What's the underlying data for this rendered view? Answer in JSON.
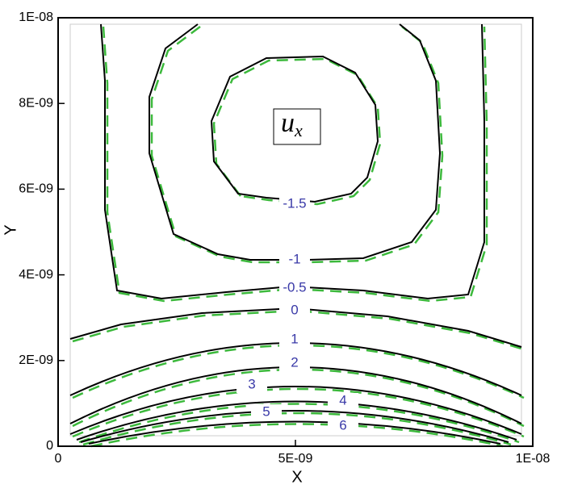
{
  "chart_data": {
    "type": "contour",
    "x_label": "X",
    "y_label": "Y",
    "xlim": [
      0,
      1e-08
    ],
    "ylim": [
      0,
      1e-08
    ],
    "xticks": [
      0,
      {
        "value": 5e-09,
        "label": "5E-09"
      },
      {
        "value": 1e-08,
        "label": "1E-08"
      }
    ],
    "yticks": [
      0,
      {
        "value": 2e-09,
        "label": "2E-09"
      },
      {
        "value": 4e-09,
        "label": "4E-09"
      },
      {
        "value": 6e-09,
        "label": "6E-09"
      },
      {
        "value": 8e-09,
        "label": "8E-09"
      },
      {
        "value": 1e-08,
        "label": "1E-08"
      }
    ],
    "levels": [
      -1.5,
      -1,
      -0.5,
      0,
      1,
      2,
      3,
      4,
      5,
      6
    ],
    "annotation": {
      "base": "u",
      "subscript": "x"
    },
    "line_colors": [
      "#000000",
      "#3cb93c"
    ]
  }
}
